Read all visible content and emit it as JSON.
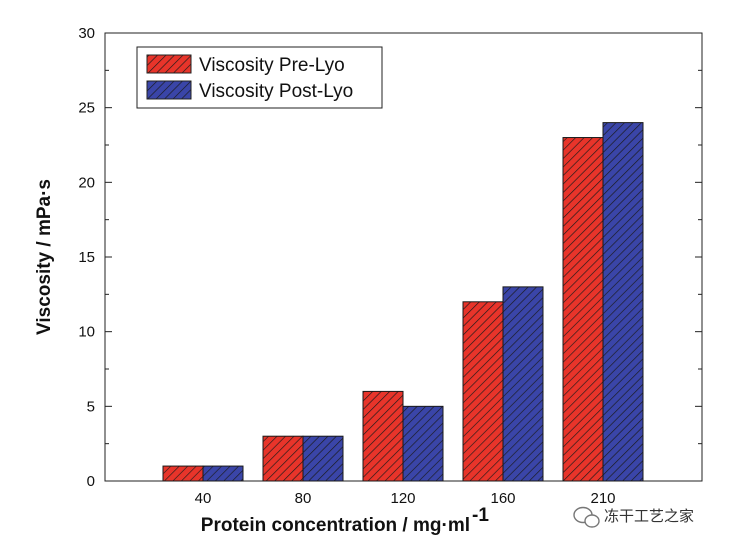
{
  "chart_data": {
    "type": "bar",
    "title": "",
    "xlabel": "Protein concentration / mg·ml",
    "xlabel_superscript": "-1",
    "ylabel": "Viscosity / mPa·s",
    "ylim": [
      0,
      30
    ],
    "yticks": [
      0,
      5,
      10,
      15,
      20,
      25,
      30
    ],
    "categories": [
      "40",
      "80",
      "120",
      "160",
      "210"
    ],
    "series": [
      {
        "name": "Viscosity Pre-Lyo",
        "values": [
          1,
          3,
          6,
          12,
          23
        ],
        "color": "#e8342a"
      },
      {
        "name": "Viscosity Post-Lyo",
        "values": [
          1,
          3,
          5,
          13,
          24
        ],
        "color": "#3a45a8"
      }
    ],
    "legend_position": "top-left",
    "grid": false
  },
  "watermark": {
    "text": "冻干工艺之家",
    "icon": "chat-bubble-icon"
  }
}
